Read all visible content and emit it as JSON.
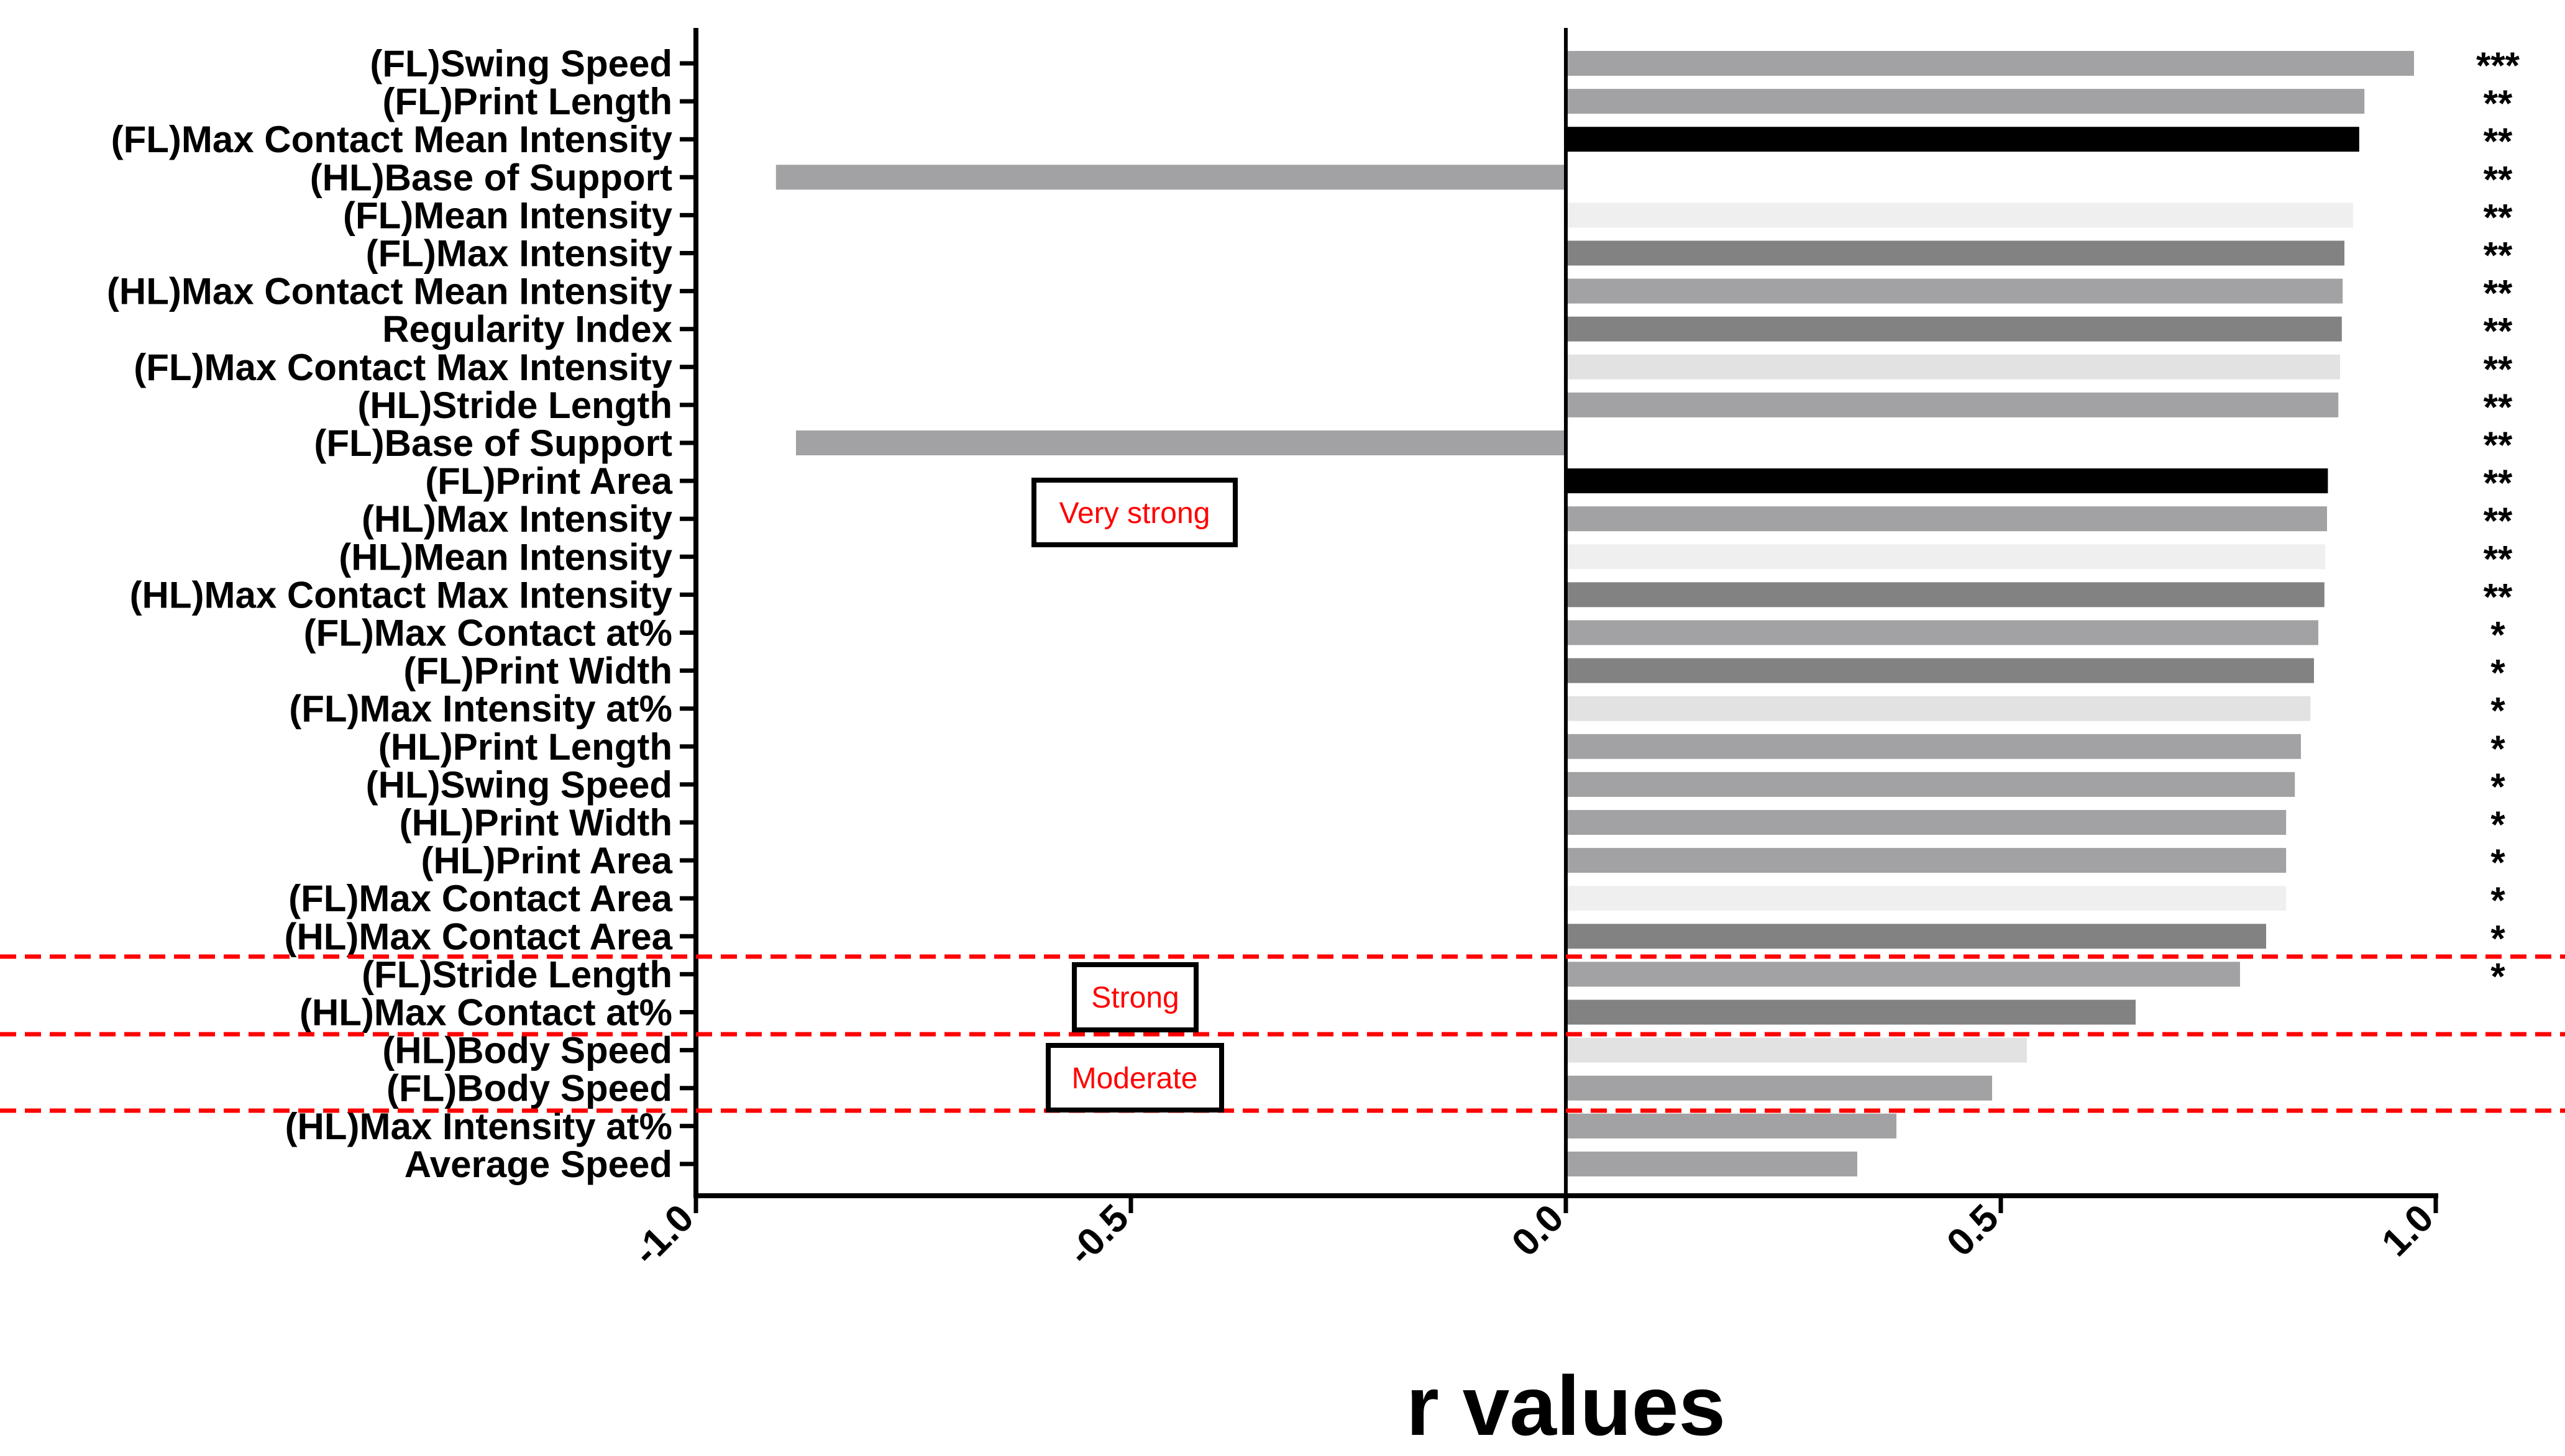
{
  "chart_data": {
    "type": "bar",
    "orientation": "horizontal",
    "title": "",
    "xlabel": "r values",
    "ylabel": "",
    "xlim": [
      -1.0,
      1.0
    ],
    "xticks": [
      -1.0,
      -0.5,
      0.0,
      0.5,
      1.0
    ],
    "xtick_labels": [
      "-1.0",
      "-0.5",
      "0.0",
      "0.5",
      "1.0"
    ],
    "grid": false,
    "categories": [
      "(FL)Swing Speed",
      "(FL)Print Length",
      "(FL)Max Contact Mean Intensity",
      "(HL)Base of Support",
      "(FL)Mean Intensity",
      "(FL)Max Intensity",
      "(HL)Max Contact Mean Intensity",
      "Regularity Index",
      "(FL)Max Contact Max Intensity",
      "(HL)Stride Length",
      "(FL)Base of Support",
      "(FL)Print Area",
      "(HL)Max Intensity",
      "(HL)Mean Intensity",
      "(HL)Max Contact Max Intensity",
      "(FL)Max Contact at%",
      "(FL)Print Width",
      "(FL)Max Intensity at%",
      "(HL)Print Length",
      "(HL)Swing Speed",
      "(HL)Print Width",
      "(HL)Print Area",
      "(FL)Max Contact Area",
      "(HL)Max Contact Area",
      "(FL)Stride Length",
      "(HL)Max Contact at%",
      "(HL)Body Speed",
      "(FL)Body Speed",
      "(HL)Max Intensity at%",
      "Average Speed"
    ],
    "values": [
      0.975,
      0.918,
      0.912,
      -0.908,
      0.905,
      0.895,
      0.893,
      0.892,
      0.89,
      0.888,
      -0.885,
      0.876,
      0.875,
      0.873,
      0.872,
      0.865,
      0.86,
      0.856,
      0.845,
      0.838,
      0.828,
      0.828,
      0.828,
      0.805,
      0.775,
      0.655,
      0.53,
      0.49,
      0.38,
      0.335
    ],
    "bar_colors": [
      "#a2a2a4",
      "#a2a2a4",
      "#000000",
      "#a2a2a4",
      "#efefef",
      "#828282",
      "#a2a2a4",
      "#828282",
      "#e2e2e2",
      "#a2a2a4",
      "#a2a2a4",
      "#000000",
      "#a2a2a4",
      "#efefef",
      "#828282",
      "#a2a2a4",
      "#828282",
      "#e2e2e2",
      "#a2a2a4",
      "#a2a2a4",
      "#a2a2a4",
      "#a2a2a4",
      "#efefef",
      "#828282",
      "#a2a2a4",
      "#828282",
      "#e2e2e2",
      "#a2a2a4",
      "#a2a2a4",
      "#a2a2a4"
    ],
    "significance": [
      "***",
      "**",
      "**",
      "**",
      "**",
      "**",
      "**",
      "**",
      "**",
      "**",
      "**",
      "**",
      "**",
      "**",
      "**",
      "*",
      "*",
      "*",
      "*",
      "*",
      "*",
      "*",
      "*",
      "*",
      "*"
    ],
    "regions": [
      {
        "label": "Very strong",
        "color": "#ff0000"
      },
      {
        "label": "Strong",
        "color": "#ff0000"
      },
      {
        "label": "Moderate",
        "color": "#ff0000"
      }
    ],
    "divider_color": "#ff0000"
  }
}
